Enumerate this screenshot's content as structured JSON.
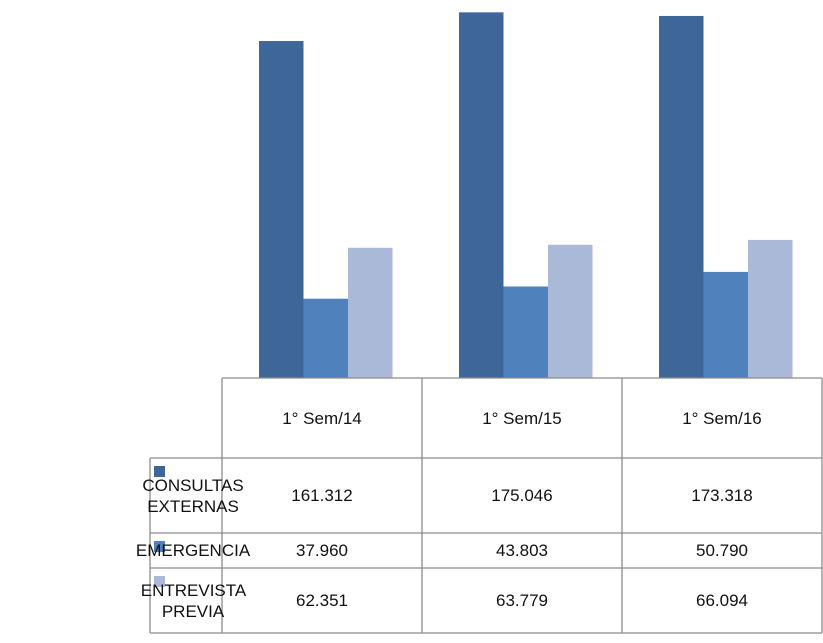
{
  "chart_data": {
    "type": "bar",
    "categories": [
      "1° Sem/14",
      "1° Sem/15",
      "1° Sem/16"
    ],
    "series": [
      {
        "name": "CONSULTAS EXTERNAS",
        "color": "#3e6699",
        "values": [
          161312,
          175046,
          173318
        ],
        "value_labels": [
          "161.312",
          "175.046",
          "173.318"
        ]
      },
      {
        "name": "EMERGENCIA",
        "color": "#4f81bd",
        "values": [
          37960,
          43803,
          50790
        ],
        "value_labels": [
          "37.960",
          "43.803",
          "50.790"
        ]
      },
      {
        "name": "ENTREVISTA PREVIA",
        "color": "#aab9d8",
        "values": [
          62351,
          63779,
          66094
        ],
        "value_labels": [
          "62.351",
          "63.779",
          "66.094"
        ]
      }
    ],
    "ylim": [
      0,
      180000
    ]
  }
}
